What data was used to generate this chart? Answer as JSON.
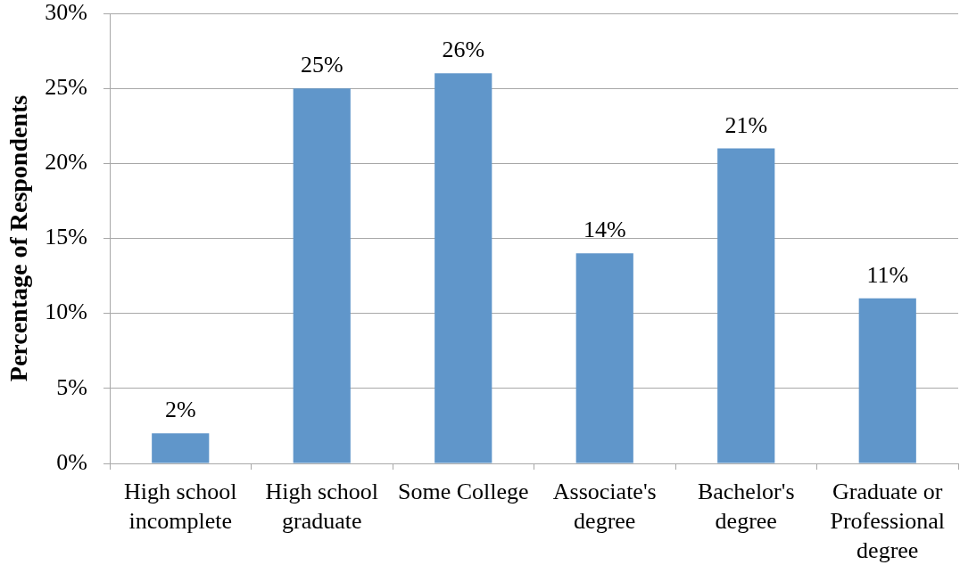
{
  "chart_data": {
    "type": "bar",
    "ylabel": "Percentage of Respondents",
    "categories": [
      "High school incomplete",
      "High school graduate",
      "Some College",
      "Associate's degree",
      "Bachelor's degree",
      "Graduate or Professional degree"
    ],
    "values": [
      2,
      25,
      26,
      14,
      21,
      11
    ],
    "value_labels": [
      "2%",
      "25%",
      "26%",
      "14%",
      "21%",
      "11%"
    ],
    "color": "#6096ca",
    "ylim": [
      0,
      30
    ],
    "yticks": [
      {
        "value": 0,
        "label": "0%"
      },
      {
        "value": 5,
        "label": "5%"
      },
      {
        "value": 10,
        "label": "10%"
      },
      {
        "value": 15,
        "label": "15%"
      },
      {
        "value": 20,
        "label": "20%"
      },
      {
        "value": 25,
        "label": "25%"
      },
      {
        "value": 30,
        "label": "30%"
      }
    ],
    "grid": "y"
  }
}
